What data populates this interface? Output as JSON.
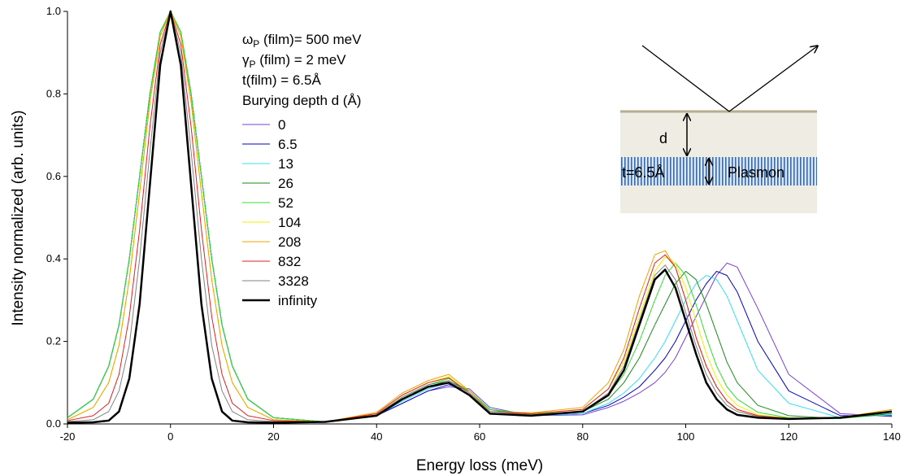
{
  "chart_data": {
    "type": "line",
    "x_label": "Energy loss (meV)",
    "y_label": "Intensity normalized (arb. units)",
    "xlim": [
      -20,
      140
    ],
    "xticks": [
      -20,
      0,
      20,
      40,
      60,
      80,
      100,
      120,
      140
    ],
    "ylim": [
      0,
      1
    ],
    "yticks": [
      {
        "value": 0,
        "label": "0.0"
      },
      0.2,
      0.4,
      0.6,
      0.8,
      {
        "value": 1,
        "label": "1.0"
      }
    ],
    "grid": false,
    "annotations": [
      {
        "symbol": "ω",
        "subscript": "P",
        "text": " (film)= 500 meV"
      },
      {
        "symbol": "γ",
        "subscript": "P",
        "text": " (film) = 2 meV"
      },
      {
        "text": "t(film) = 6.5Å"
      }
    ],
    "legend_title": "Burying depth d (Å)",
    "inset": {
      "depth_label": "d",
      "thickness_label": "t=6.5Å",
      "layer_label": "Plasmon"
    },
    "x": [
      -20,
      -15,
      -12,
      -10,
      -8,
      -6,
      -4,
      -2,
      0,
      2,
      4,
      6,
      8,
      10,
      12,
      15,
      20,
      30,
      40,
      45,
      50,
      54,
      58,
      62,
      70,
      80,
      85,
      88,
      91,
      94,
      96,
      98,
      100,
      102,
      104,
      106,
      108,
      110,
      114,
      120,
      130,
      140
    ],
    "series": [
      {
        "name": "0",
        "color": "#7b3fd6",
        "linewidth": 1,
        "values": [
          0.015,
          0.06,
          0.14,
          0.24,
          0.4,
          0.6,
          0.8,
          0.95,
          1,
          0.95,
          0.8,
          0.6,
          0.4,
          0.24,
          0.14,
          0.06,
          0.015,
          0.005,
          0.02,
          0.05,
          0.08,
          0.09,
          0.085,
          0.04,
          0.02,
          0.022,
          0.04,
          0.055,
          0.075,
          0.1,
          0.125,
          0.16,
          0.21,
          0.26,
          0.31,
          0.36,
          0.39,
          0.38,
          0.28,
          0.12,
          0.025,
          0.018
        ]
      },
      {
        "name": "6.5",
        "color": "#0000c0",
        "linewidth": 1,
        "values": [
          0.015,
          0.06,
          0.14,
          0.24,
          0.4,
          0.6,
          0.8,
          0.95,
          1,
          0.95,
          0.8,
          0.6,
          0.4,
          0.24,
          0.14,
          0.06,
          0.015,
          0.005,
          0.02,
          0.05,
          0.08,
          0.095,
          0.08,
          0.035,
          0.02,
          0.025,
          0.045,
          0.065,
          0.09,
          0.13,
          0.16,
          0.2,
          0.25,
          0.3,
          0.34,
          0.37,
          0.36,
          0.32,
          0.2,
          0.08,
          0.02,
          0.02
        ]
      },
      {
        "name": "13",
        "color": "#33e0f0",
        "linewidth": 1,
        "values": [
          0.015,
          0.06,
          0.14,
          0.24,
          0.4,
          0.6,
          0.8,
          0.95,
          1,
          0.95,
          0.8,
          0.6,
          0.4,
          0.24,
          0.14,
          0.06,
          0.015,
          0.005,
          0.02,
          0.055,
          0.085,
          0.1,
          0.08,
          0.035,
          0.02,
          0.025,
          0.05,
          0.075,
          0.11,
          0.16,
          0.2,
          0.25,
          0.3,
          0.34,
          0.36,
          0.35,
          0.31,
          0.25,
          0.13,
          0.05,
          0.015,
          0.022
        ]
      },
      {
        "name": "26",
        "color": "#1a8a1a",
        "linewidth": 1,
        "values": [
          0.015,
          0.06,
          0.14,
          0.24,
          0.4,
          0.6,
          0.8,
          0.95,
          1,
          0.95,
          0.8,
          0.6,
          0.4,
          0.24,
          0.14,
          0.06,
          0.015,
          0.005,
          0.02,
          0.06,
          0.09,
          0.105,
          0.08,
          0.035,
          0.022,
          0.03,
          0.06,
          0.1,
          0.16,
          0.24,
          0.29,
          0.34,
          0.37,
          0.35,
          0.29,
          0.22,
          0.15,
          0.1,
          0.045,
          0.02,
          0.013,
          0.025
        ]
      },
      {
        "name": "52",
        "color": "#33dd33",
        "linewidth": 1,
        "values": [
          0.015,
          0.06,
          0.14,
          0.24,
          0.4,
          0.6,
          0.8,
          0.95,
          1,
          0.95,
          0.8,
          0.6,
          0.4,
          0.24,
          0.14,
          0.06,
          0.015,
          0.005,
          0.022,
          0.065,
          0.095,
          0.11,
          0.08,
          0.035,
          0.024,
          0.03,
          0.07,
          0.12,
          0.2,
          0.3,
          0.36,
          0.39,
          0.36,
          0.29,
          0.21,
          0.14,
          0.09,
          0.06,
          0.028,
          0.015,
          0.013,
          0.028
        ]
      },
      {
        "name": "104",
        "color": "#f0f000",
        "linewidth": 1,
        "values": [
          0.01,
          0.04,
          0.1,
          0.19,
          0.35,
          0.56,
          0.78,
          0.94,
          1,
          0.94,
          0.78,
          0.56,
          0.35,
          0.19,
          0.1,
          0.04,
          0.01,
          0.005,
          0.025,
          0.07,
          0.1,
          0.115,
          0.075,
          0.03,
          0.025,
          0.035,
          0.085,
          0.15,
          0.26,
          0.37,
          0.405,
          0.39,
          0.33,
          0.25,
          0.17,
          0.11,
          0.07,
          0.045,
          0.022,
          0.014,
          0.014,
          0.03
        ]
      },
      {
        "name": "208",
        "color": "#f0a000",
        "linewidth": 1,
        "values": [
          0.01,
          0.04,
          0.1,
          0.19,
          0.35,
          0.56,
          0.78,
          0.94,
          1,
          0.94,
          0.78,
          0.56,
          0.35,
          0.19,
          0.1,
          0.04,
          0.01,
          0.005,
          0.028,
          0.075,
          0.105,
          0.12,
          0.08,
          0.03,
          0.027,
          0.04,
          0.1,
          0.18,
          0.31,
          0.41,
          0.42,
          0.38,
          0.3,
          0.21,
          0.14,
          0.09,
          0.055,
          0.035,
          0.02,
          0.014,
          0.016,
          0.035
        ]
      },
      {
        "name": "832",
        "color": "#e02020",
        "linewidth": 1,
        "values": [
          0.008,
          0.02,
          0.05,
          0.12,
          0.26,
          0.47,
          0.72,
          0.92,
          1,
          0.92,
          0.72,
          0.47,
          0.26,
          0.12,
          0.05,
          0.02,
          0.008,
          0.005,
          0.025,
          0.07,
          0.1,
          0.112,
          0.075,
          0.03,
          0.025,
          0.035,
          0.085,
          0.16,
          0.28,
          0.39,
          0.41,
          0.38,
          0.3,
          0.21,
          0.14,
          0.09,
          0.055,
          0.035,
          0.02,
          0.013,
          0.014,
          0.03
        ]
      },
      {
        "name": "3328",
        "color": "#808080",
        "linewidth": 1,
        "values": [
          0.006,
          0.01,
          0.03,
          0.08,
          0.19,
          0.4,
          0.66,
          0.9,
          1,
          0.9,
          0.66,
          0.4,
          0.19,
          0.08,
          0.03,
          0.01,
          0.006,
          0.005,
          0.022,
          0.065,
          0.095,
          0.105,
          0.075,
          0.03,
          0.022,
          0.03,
          0.075,
          0.14,
          0.25,
          0.36,
          0.385,
          0.35,
          0.27,
          0.19,
          0.12,
          0.075,
          0.045,
          0.03,
          0.018,
          0.013,
          0.014,
          0.028
        ]
      },
      {
        "name": "infinity",
        "color": "#000000",
        "linewidth": 2.5,
        "values": [
          0.003,
          0.004,
          0.008,
          0.03,
          0.11,
          0.29,
          0.58,
          0.87,
          1,
          0.87,
          0.58,
          0.29,
          0.11,
          0.03,
          0.008,
          0.004,
          0.003,
          0.005,
          0.02,
          0.06,
          0.09,
          0.1,
          0.07,
          0.025,
          0.02,
          0.03,
          0.07,
          0.13,
          0.24,
          0.35,
          0.374,
          0.33,
          0.25,
          0.17,
          0.1,
          0.06,
          0.035,
          0.022,
          0.015,
          0.012,
          0.015,
          0.03
        ]
      }
    ]
  }
}
